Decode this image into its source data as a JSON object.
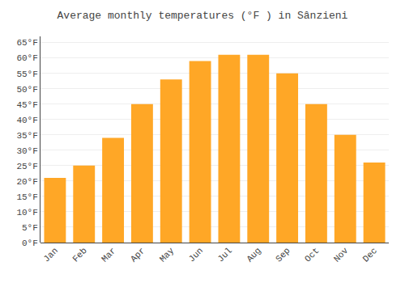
{
  "chart_data": {
    "type": "bar",
    "title": "Average monthly temperatures (°F ) in Sânzieni",
    "categories": [
      "Jan",
      "Feb",
      "Mar",
      "Apr",
      "May",
      "Jun",
      "Jul",
      "Aug",
      "Sep",
      "Oct",
      "Nov",
      "Dec"
    ],
    "values": [
      21,
      25,
      34,
      45,
      53,
      59,
      61,
      61,
      55,
      45,
      35,
      26
    ],
    "color": "#FFA726",
    "ylim": [
      0,
      67
    ],
    "yticks": [
      {
        "value": 0,
        "label": "0°F"
      },
      {
        "value": 5,
        "label": "5°F"
      },
      {
        "value": 10,
        "label": "10°F"
      },
      {
        "value": 15,
        "label": "15°F"
      },
      {
        "value": 20,
        "label": "20°F"
      },
      {
        "value": 25,
        "label": "25°F"
      },
      {
        "value": 30,
        "label": "30°F"
      },
      {
        "value": 35,
        "label": "35°F"
      },
      {
        "value": 40,
        "label": "40°F"
      },
      {
        "value": 45,
        "label": "45°F"
      },
      {
        "value": 50,
        "label": "50°F"
      },
      {
        "value": 55,
        "label": "55°F"
      },
      {
        "value": 60,
        "label": "60°F"
      },
      {
        "value": 65,
        "label": "65°F"
      }
    ],
    "grid": true
  }
}
